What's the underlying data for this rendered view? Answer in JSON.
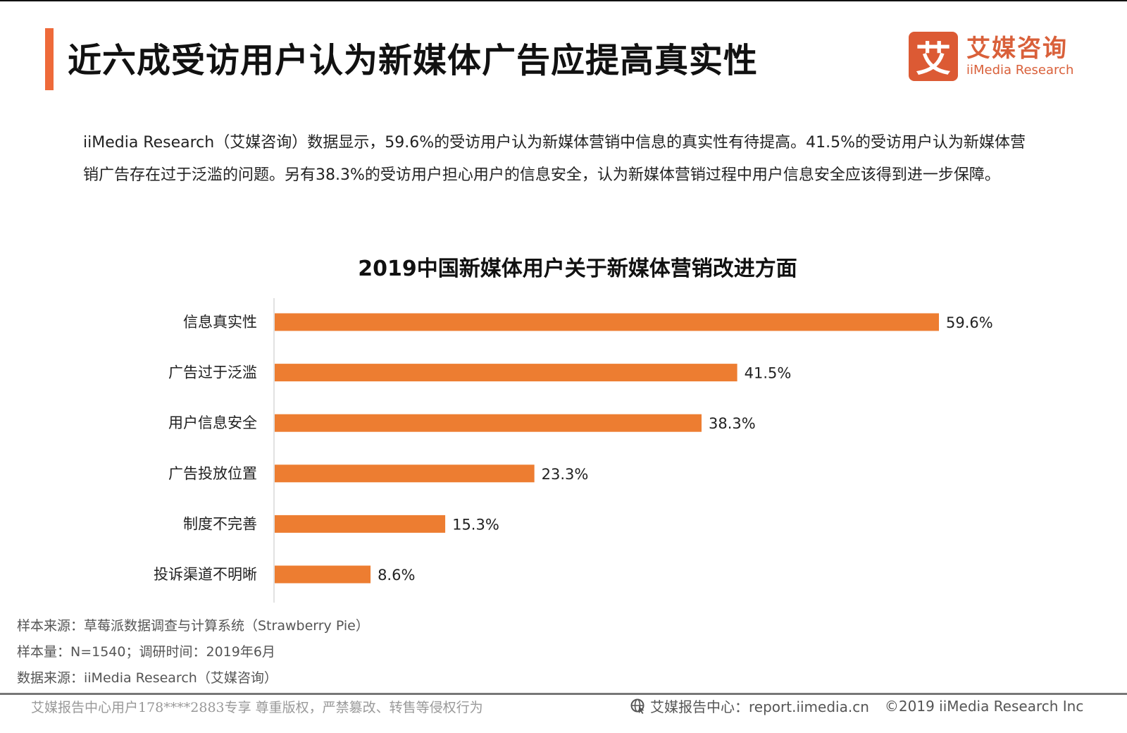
{
  "page": {
    "title": "近六成受访用户认为新媒体广告应提高真实性",
    "accent_color": "#ee6a3a",
    "bar_color": "#ed7d31"
  },
  "logo": {
    "glyph": "艾",
    "cn": "艾媒咨询",
    "en": "iiMedia Research"
  },
  "summary": "iiMedia Research（艾媒咨询）数据显示，59.6%的受访用户认为新媒体营销中信息的真实性有待提高。41.5%的受访用户认为新媒体营销广告存在过于泛滥的问题。另有38.3%的受访用户担心用户的信息安全，认为新媒体营销过程中用户信息安全应该得到进一步保障。",
  "chart_data": {
    "type": "bar",
    "orientation": "horizontal",
    "title": "2019中国新媒体用户关于新媒体营销改进方面",
    "categories": [
      "信息真实性",
      "广告过于泛滥",
      "用户信息安全",
      "广告投放位置",
      "制度不完善",
      "投诉渠道不明晰"
    ],
    "values": [
      59.6,
      41.5,
      38.3,
      23.3,
      15.3,
      8.6
    ],
    "labels": [
      "59.6%",
      "41.5%",
      "38.3%",
      "23.3%",
      "15.3%",
      "8.6%"
    ],
    "unit": "%",
    "xlabel": "",
    "ylabel": "",
    "xlim": [
      0,
      59.6
    ],
    "grid": false,
    "legend": "none"
  },
  "notes": {
    "sample_source": "样本来源：草莓派数据调查与计算系统（Strawberry Pie）",
    "sample_size": "样本量：N=1540；调研时间：2019年6月",
    "data_source": "数据来源：iiMedia Research（艾媒咨询）"
  },
  "footer": {
    "watermark": "艾媒报告中心用户178****2883专享 尊重版权，严禁篡改、转售等侵权行为",
    "report_center": "艾媒报告中心：report.iimedia.cn",
    "copyright": "©2019  iiMedia Research  Inc"
  }
}
